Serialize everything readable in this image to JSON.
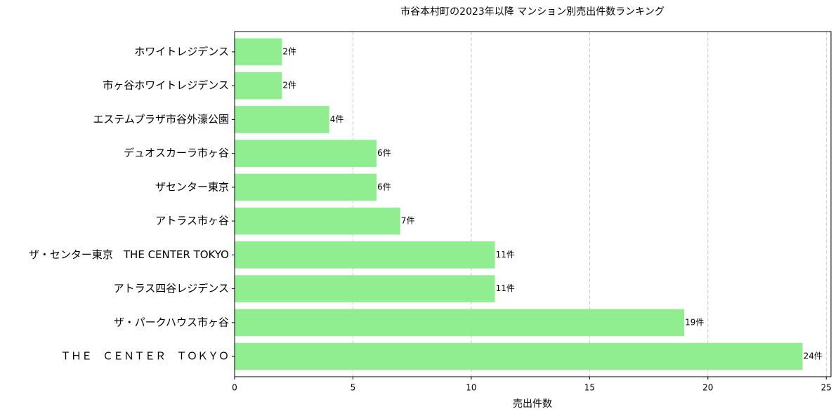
{
  "chart_data": {
    "type": "barh",
    "title": "市谷本村町の2023年以降 マンション別売出件数ランキング",
    "xlabel": "売出件数",
    "categories": [
      "ホワイトレジデンス",
      "市ヶ谷ホワイトレジデンス",
      "エステムプラザ市谷外濠公園",
      "デュオスカーラ市ヶ谷",
      "ザセンター東京",
      "アトラス市ヶ谷",
      "ザ・センター東京　THE CENTER TOKYO",
      "アトラス四谷レジデンス",
      "ザ・パークハウス市ヶ谷",
      "ＴＨＥ　ＣＥＮＴＥＲ　ＴＯＫＹＯ"
    ],
    "values": [
      2,
      2,
      4,
      6,
      6,
      7,
      11,
      11,
      19,
      24
    ],
    "value_labels": [
      "2件",
      "2件",
      "4件",
      "6件",
      "6件",
      "7件",
      "11件",
      "11件",
      "19件",
      "24件"
    ],
    "color": "#90ee90",
    "xlim": [
      0,
      25.2
    ],
    "xticks": [
      0,
      5,
      10,
      15,
      20,
      25
    ],
    "grid": true
  }
}
